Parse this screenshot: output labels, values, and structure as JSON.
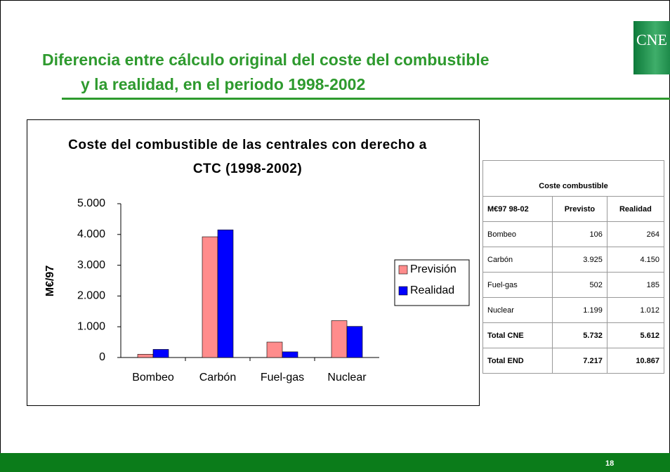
{
  "header": {
    "title_line1": "Diferencia entre cálculo original del coste del combustible",
    "title_line2": "y la realidad, en el periodo 1998-2002",
    "logo": "CNE"
  },
  "chart_data": {
    "type": "bar",
    "title": "Coste del combustible de las centrales con derecho a CTC (1998-2002)",
    "y_label": "M€/97",
    "categories": [
      "Bombeo",
      "Carbón",
      "Fuel-gas",
      "Nuclear"
    ],
    "series": [
      {
        "name": "Previsión",
        "color": "#ff8c8c",
        "values": [
          106,
          3925,
          502,
          1199
        ]
      },
      {
        "name": "Realidad",
        "color": "#0000ff",
        "values": [
          264,
          4150,
          185,
          1012
        ]
      }
    ],
    "ylim": [
      0,
      5000
    ],
    "yticks": [
      0,
      {
        "value": 1000,
        "label": "1.000"
      },
      {
        "value": 2000,
        "label": "2.000"
      },
      {
        "value": 3000,
        "label": "3.000"
      },
      {
        "value": 4000,
        "label": "4.000"
      },
      {
        "value": 5000,
        "label": "5.000"
      }
    ],
    "legend": "right"
  },
  "table": {
    "title": "Coste combustible",
    "header": [
      "M€97 98-02",
      "Previsto",
      "Realidad"
    ],
    "rows": [
      [
        "Bombeo",
        "106",
        "264"
      ],
      [
        "Carbón",
        "3.925",
        "4.150"
      ],
      [
        "Fuel-gas",
        "502",
        "185"
      ],
      [
        "Nuclear",
        "1.199",
        "1.012"
      ],
      [
        "Total CNE",
        "5.732",
        "5.612"
      ],
      [
        "Total END",
        "7.217",
        "10.867"
      ]
    ]
  },
  "footer": {
    "page": "18"
  }
}
